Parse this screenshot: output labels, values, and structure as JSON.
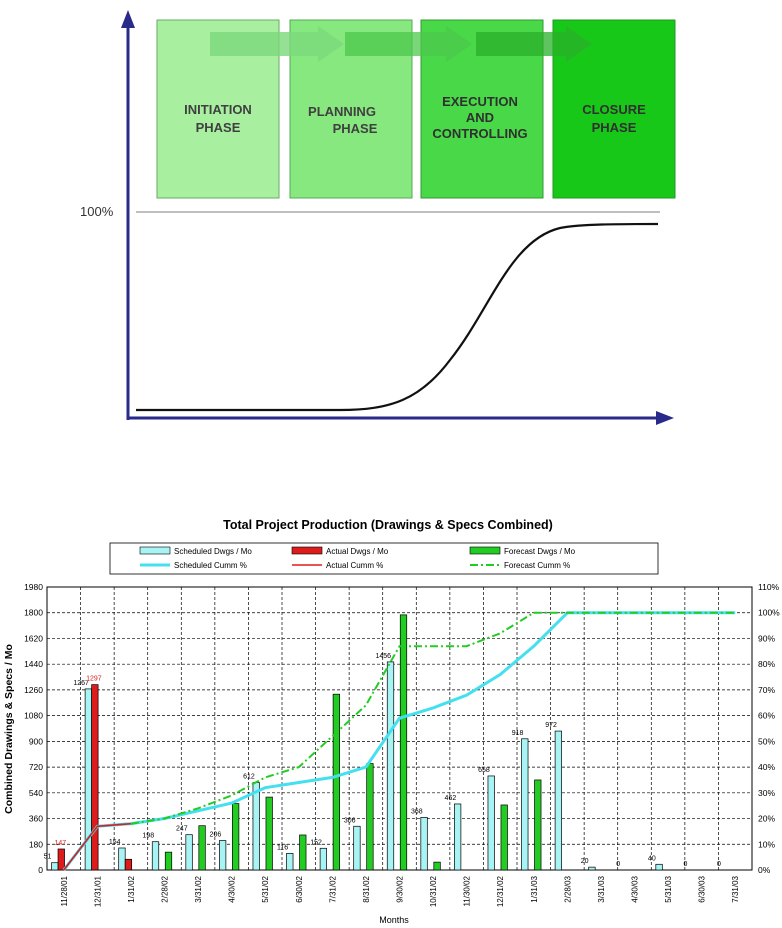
{
  "phases": [
    {
      "line1": "INITIATION",
      "line2": "PHASE",
      "line3": "",
      "fill": "#a8f0a0"
    },
    {
      "line1": "PLANNING",
      "line2": "PHASE",
      "line3": "",
      "fill": "#88e880"
    },
    {
      "line1": "EXECUTION",
      "line2": "AND",
      "line3": "CONTROLLING",
      "fill": "#48d848"
    },
    {
      "line1": "CLOSURE",
      "line2": "PHASE",
      "line3": "",
      "fill": "#18c818"
    }
  ],
  "scurve": {
    "level_label": "100%"
  },
  "chart_data": {
    "type": "bar",
    "title": "Total Project Production (Drawings & Specs Combined)",
    "xlabel": "Months",
    "ylabel": "Combined Drawings & Specs / Mo",
    "ylim": [
      0,
      1980
    ],
    "y2lim": [
      0,
      110
    ],
    "yticks": [
      "0",
      "180",
      "360",
      "540",
      "720",
      "900",
      "1080",
      "1260",
      "1440",
      "1620",
      "1800",
      "1980"
    ],
    "y2ticks": [
      "0%",
      "10%",
      "20%",
      "30%",
      "40%",
      "50%",
      "60%",
      "70%",
      "80%",
      "90%",
      "100%",
      "110%"
    ],
    "grid": true,
    "legend_position": "top",
    "categories": [
      "11/28/01",
      "12/31/01",
      "1/31/02",
      "2/28/02",
      "3/31/02",
      "4/30/02",
      "5/31/02",
      "6/30/02",
      "7/31/02",
      "8/31/02",
      "9/30/02",
      "10/31/02",
      "11/30/02",
      "12/31/02",
      "1/31/03",
      "2/28/03",
      "3/31/03",
      "4/30/03",
      "5/31/03",
      "6/30/03",
      "7/31/03"
    ],
    "series": [
      {
        "name": "Scheduled Dwgs / Mo",
        "kind": "bar",
        "color": "#a8f4f4",
        "values": [
          51,
          1267,
          154,
          198,
          247,
          206,
          612,
          116,
          152,
          306,
          1456,
          368,
          462,
          658,
          918,
          972,
          20,
          0,
          40,
          0,
          0
        ],
        "labels": [
          "51",
          "1267",
          "154",
          "198",
          "247",
          "206",
          "612",
          "116",
          "152",
          "306",
          "1456",
          "368",
          "462",
          "658",
          "918",
          "972",
          "20",
          "0",
          "40",
          "0",
          "0"
        ]
      },
      {
        "name": "Actual Dwgs / Mo",
        "kind": "bar",
        "color": "#dd1c1c",
        "values": [
          147,
          1297,
          75,
          null,
          null,
          null,
          null,
          null,
          null,
          null,
          null,
          null,
          null,
          null,
          null,
          null,
          null,
          null,
          null,
          null,
          null
        ],
        "labels": [
          "147",
          "1297",
          "",
          "",
          "",
          "",
          "",
          "",
          "",
          "",
          "",
          "",
          "",
          "",
          "",
          "",
          "",
          "",
          "",
          "",
          ""
        ]
      },
      {
        "name": "Forecast Dwgs / Mo",
        "kind": "bar",
        "color": "#22cc22",
        "values": [
          null,
          null,
          null,
          125,
          310,
          465,
          510,
          245,
          1230,
          745,
          1785,
          55,
          null,
          455,
          630,
          null,
          null,
          null,
          null,
          null,
          null
        ]
      },
      {
        "name": "Scheduled Cumm %",
        "kind": "line",
        "color": "#44e0f0",
        "values": [
          0,
          17,
          18,
          20,
          23,
          26,
          32,
          34,
          36,
          40,
          59,
          63,
          68,
          76,
          87,
          100,
          100,
          100,
          100,
          100,
          100
        ]
      },
      {
        "name": "Actual Cumm %",
        "kind": "line",
        "color": "#dd1c1c",
        "values": [
          0,
          17,
          18,
          null,
          null,
          null,
          null,
          null,
          null,
          null,
          null,
          null,
          null,
          null,
          null,
          null,
          null,
          null,
          null,
          null,
          null
        ]
      },
      {
        "name": "Forecast Cumm %",
        "kind": "dashline",
        "color": "#22cc22",
        "values": [
          null,
          null,
          18,
          20,
          24,
          29,
          36,
          40,
          52,
          64,
          87,
          87,
          87,
          92,
          100,
          100,
          100,
          100,
          100,
          100,
          100
        ]
      }
    ]
  }
}
